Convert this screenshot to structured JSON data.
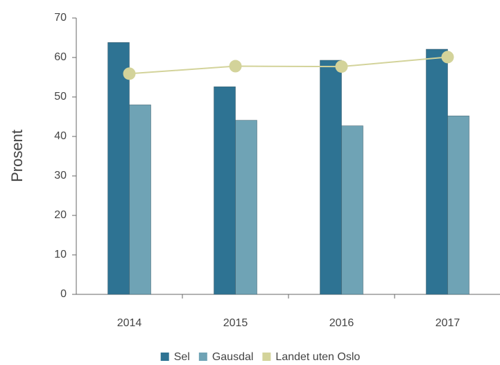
{
  "chart_data": {
    "type": "bar",
    "y_label": "Prosent",
    "categories": [
      "2014",
      "2015",
      "2016",
      "2017"
    ],
    "series": [
      {
        "name": "Sel",
        "color": "#2e7393",
        "values": [
          63.8,
          52.6,
          59.3,
          62.1
        ]
      },
      {
        "name": "Gausdal",
        "color": "#6fa3b5",
        "values": [
          48.0,
          44.1,
          42.7,
          45.2
        ]
      },
      {
        "name": "Landet uten Oslo",
        "color": "#d3d39a",
        "type": "line",
        "values": [
          55.9,
          57.8,
          57.7,
          60.1
        ]
      }
    ],
    "ylim": [
      0,
      70
    ],
    "yticks": [
      0,
      10,
      20,
      30,
      40,
      50,
      60,
      70
    ],
    "grid": false,
    "legend": "bottom"
  }
}
